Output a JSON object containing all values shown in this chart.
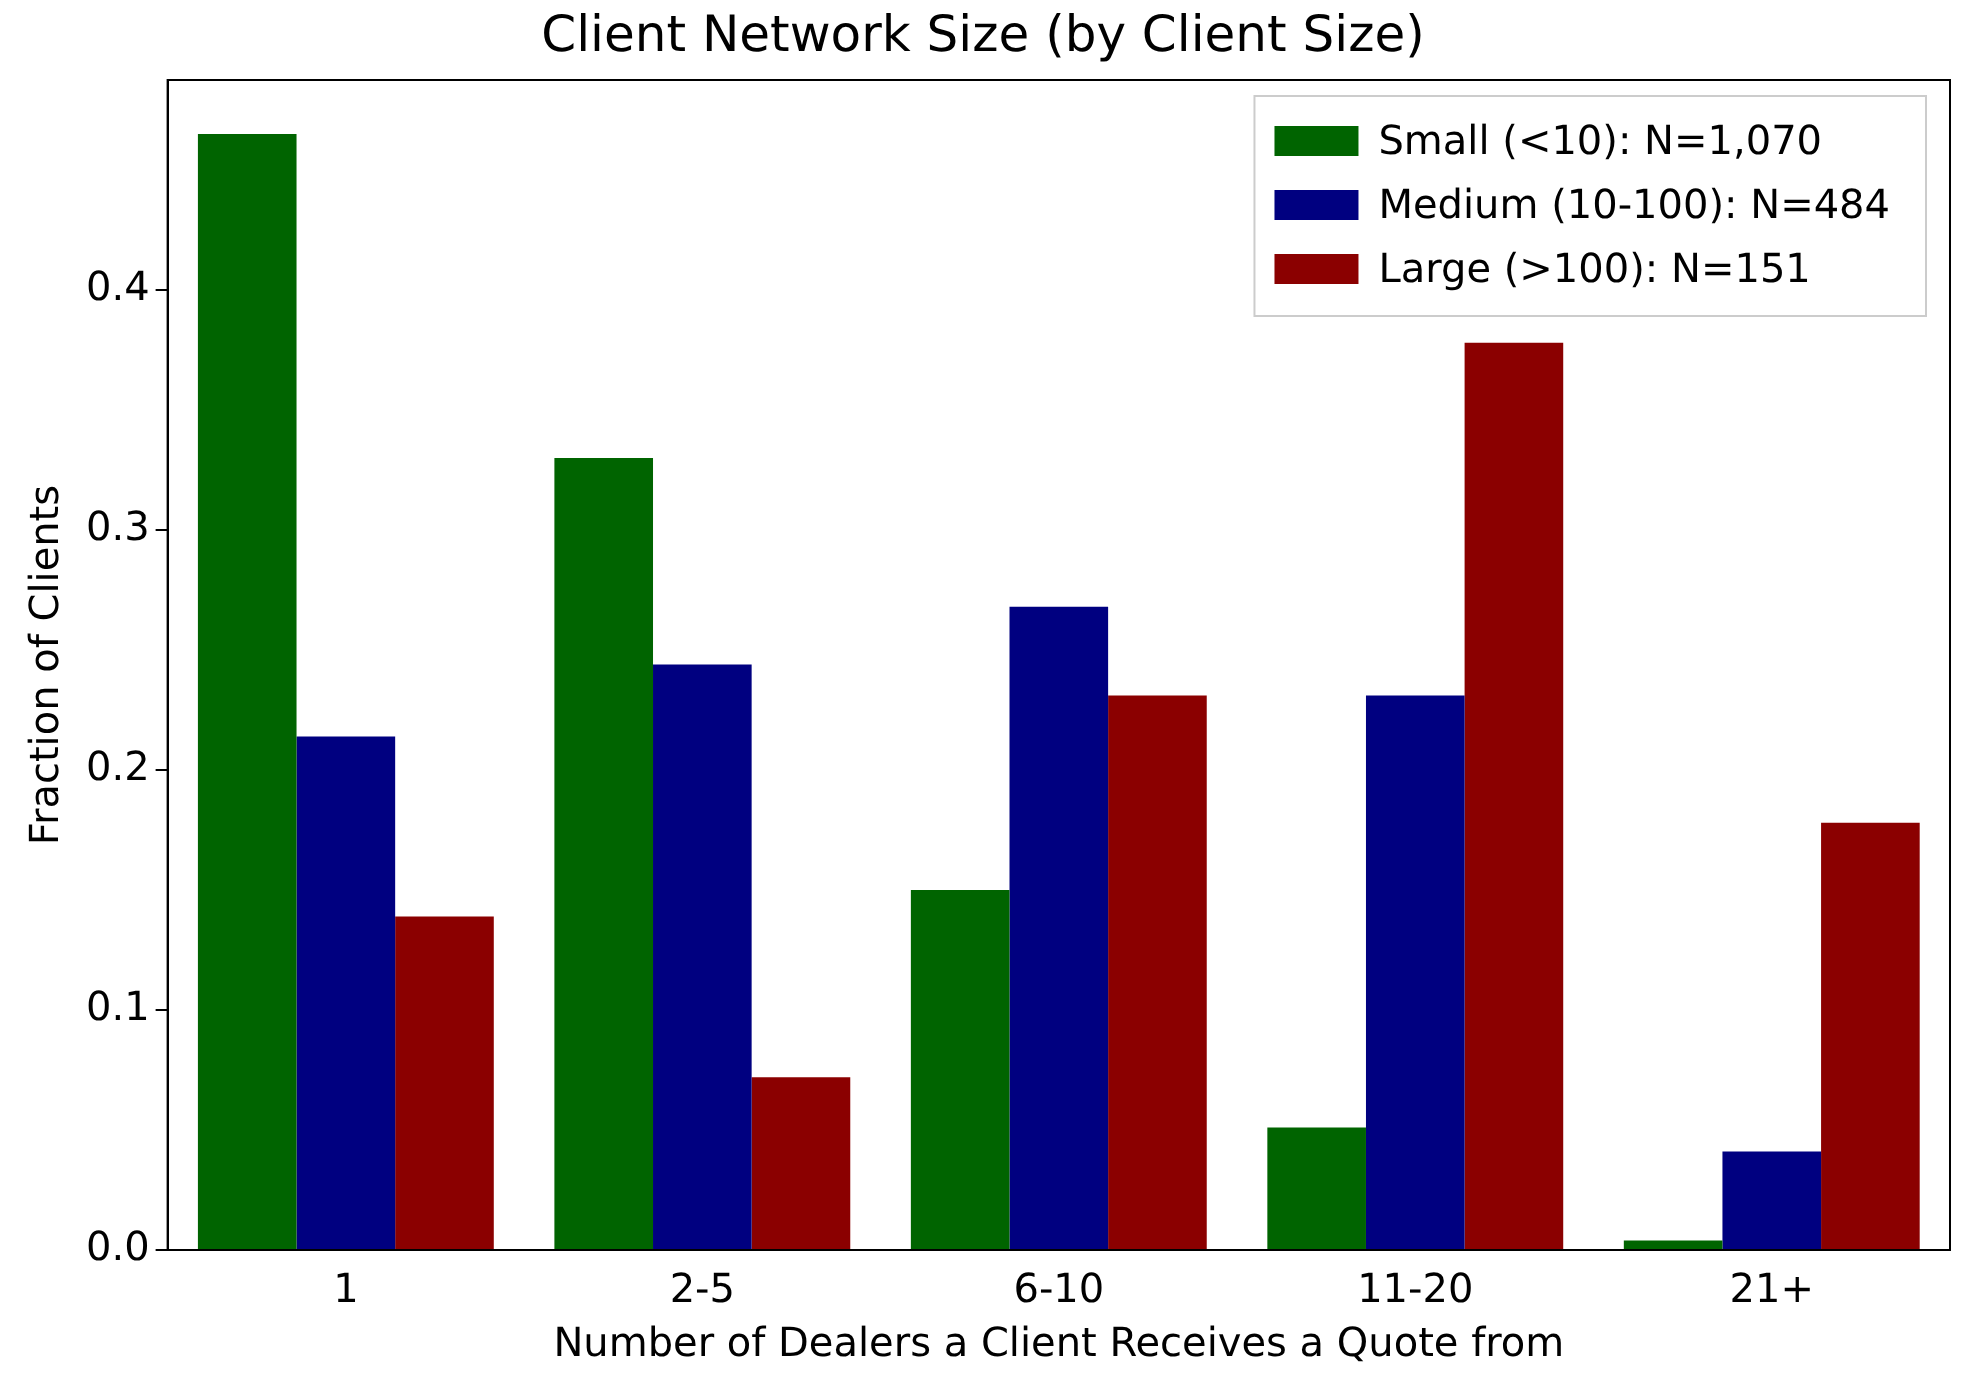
{
  "chart_data": {
    "type": "bar",
    "title": "Client Network Size (by Client Size)",
    "xlabel": "Number of Dealers a Client Receives a Quote from",
    "ylabel": "Fraction of Clients",
    "categories": [
      "1",
      "2-5",
      "6-10",
      "11-20",
      "21+"
    ],
    "series": [
      {
        "name": "Small (<10): N=1,070",
        "color": "#006400",
        "values": [
          0.465,
          0.33,
          0.15,
          0.051,
          0.004
        ]
      },
      {
        "name": "Medium (10-100): N=484",
        "color": "#000080",
        "values": [
          0.214,
          0.244,
          0.268,
          0.231,
          0.041
        ]
      },
      {
        "name": "Large (>100): N=151",
        "color": "#8b0000",
        "values": [
          0.139,
          0.072,
          0.231,
          0.378,
          0.178
        ]
      }
    ],
    "ylim": [
      0,
      0.4875
    ],
    "yticks": [
      {
        "value": 0,
        "label": "0.0"
      },
      0.1,
      0.2,
      0.3,
      0.4
    ],
    "grid": false,
    "legend": "top right"
  }
}
